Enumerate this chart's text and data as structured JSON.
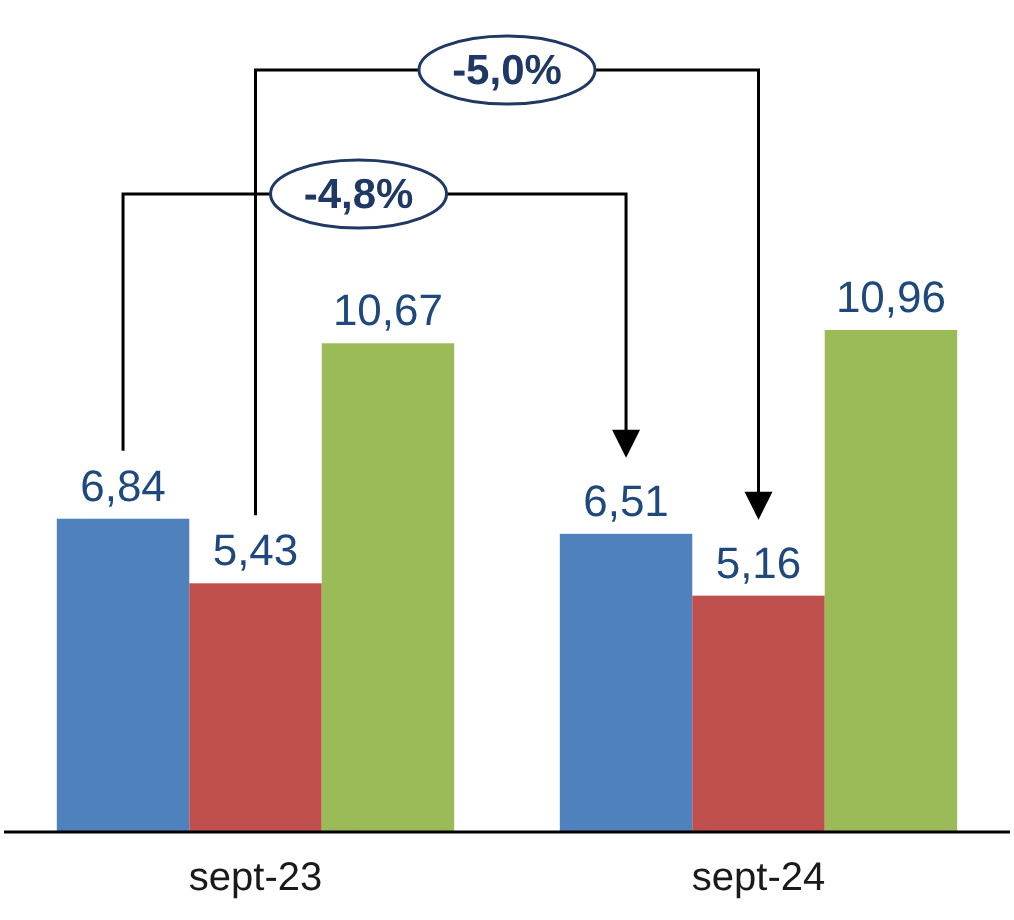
{
  "chart_data": {
    "type": "bar",
    "categories": [
      "sept-23",
      "sept-24"
    ],
    "series": [
      {
        "color": "#4f81bd",
        "values": [
          6.84,
          6.51
        ],
        "value_labels": [
          "6,84",
          "6,51"
        ]
      },
      {
        "color": "#c0504d",
        "values": [
          5.43,
          5.16
        ],
        "value_labels": [
          "5,43",
          "5,16"
        ]
      },
      {
        "color": "#9bbb59",
        "values": [
          10.67,
          10.96
        ],
        "value_labels": [
          "10,67",
          "10,96"
        ]
      }
    ],
    "annotations": [
      "-4,8%",
      "-5,0%"
    ]
  }
}
